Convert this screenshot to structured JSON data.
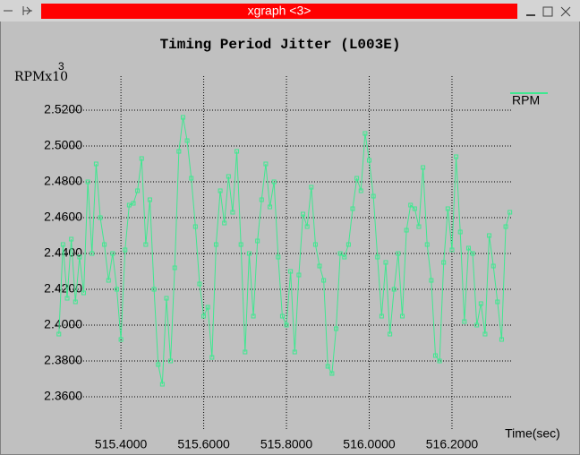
{
  "window": {
    "title": "xgraph <3>"
  },
  "chart_data": {
    "type": "line",
    "title": "Timing Period Jitter (L003E)",
    "y_label": "RPMx10",
    "y_label_exponent": "3",
    "x_label": "Time(sec)",
    "xlim": [
      515.244,
      516.345
    ],
    "ylim": [
      2.3415,
      2.539
    ],
    "grid": true,
    "legend": "top-right",
    "xticks": [
      {
        "value": 515.4,
        "label": "515.4000"
      },
      {
        "value": 515.6,
        "label": "515.6000"
      },
      {
        "value": 515.8,
        "label": "515.8000"
      },
      {
        "value": 516.0,
        "label": "516.0000"
      },
      {
        "value": 516.2,
        "label": "516.2000"
      }
    ],
    "yticks": [
      {
        "value": 2.36,
        "label": "2.3600"
      },
      {
        "value": 2.38,
        "label": "2.3800"
      },
      {
        "value": 2.4,
        "label": "2.4000"
      },
      {
        "value": 2.42,
        "label": "2.4200"
      },
      {
        "value": 2.44,
        "label": "2.4400"
      },
      {
        "value": 2.46,
        "label": "2.4600"
      },
      {
        "value": 2.48,
        "label": "2.4800"
      },
      {
        "value": 2.5,
        "label": "2.5000"
      },
      {
        "value": 2.52,
        "label": "2.5200"
      }
    ],
    "x": [
      515.25,
      515.26,
      515.27,
      515.28,
      515.29,
      515.3,
      515.31,
      515.32,
      515.33,
      515.34,
      515.35,
      515.36,
      515.37,
      515.38,
      515.39,
      515.4,
      515.41,
      515.42,
      515.43,
      515.44,
      515.45,
      515.46,
      515.47,
      515.48,
      515.49,
      515.5,
      515.51,
      515.52,
      515.53,
      515.54,
      515.55,
      515.56,
      515.57,
      515.58,
      515.59,
      515.6,
      515.61,
      515.62,
      515.63,
      515.64,
      515.65,
      515.66,
      515.67,
      515.68,
      515.69,
      515.7,
      515.71,
      515.72,
      515.73,
      515.74,
      515.75,
      515.76,
      515.77,
      515.78,
      515.79,
      515.8,
      515.81,
      515.82,
      515.83,
      515.84,
      515.85,
      515.86,
      515.87,
      515.88,
      515.89,
      515.9,
      515.91,
      515.92,
      515.93,
      515.94,
      515.95,
      515.96,
      515.97,
      515.98,
      515.99,
      516.0,
      516.01,
      516.02,
      516.03,
      516.04,
      516.05,
      516.06,
      516.07,
      516.08,
      516.09,
      516.1,
      516.11,
      516.12,
      516.13,
      516.14,
      516.15,
      516.16,
      516.17,
      516.18,
      516.19,
      516.2,
      516.21,
      516.22,
      516.23,
      516.24,
      516.25,
      516.26,
      516.27,
      516.28,
      516.29,
      516.3,
      516.31,
      516.32,
      516.33,
      516.34
    ],
    "series": [
      {
        "name": "RPM",
        "color": "#3ee890",
        "values": [
          2.395,
          2.445,
          2.415,
          2.448,
          2.413,
          2.438,
          2.418,
          2.48,
          2.44,
          2.49,
          2.46,
          2.445,
          2.425,
          2.44,
          2.42,
          2.392,
          2.442,
          2.467,
          2.468,
          2.475,
          2.493,
          2.445,
          2.47,
          2.42,
          2.378,
          2.367,
          2.415,
          2.38,
          2.432,
          2.497,
          2.516,
          2.503,
          2.482,
          2.455,
          2.423,
          2.405,
          2.41,
          2.382,
          2.445,
          2.475,
          2.457,
          2.483,
          2.463,
          2.497,
          2.445,
          2.385,
          2.44,
          2.405,
          2.447,
          2.47,
          2.49,
          2.466,
          2.48,
          2.438,
          2.405,
          2.4,
          2.43,
          2.385,
          2.428,
          2.462,
          2.455,
          2.477,
          2.445,
          2.433,
          2.425,
          2.377,
          2.373,
          2.398,
          2.44,
          2.438,
          2.445,
          2.465,
          2.482,
          2.475,
          2.507,
          2.492,
          2.472,
          2.438,
          2.405,
          2.435,
          2.395,
          2.42,
          2.44,
          2.405,
          2.453,
          2.467,
          2.465,
          2.455,
          2.488,
          2.445,
          2.425,
          2.383,
          2.38,
          2.435,
          2.465,
          2.442,
          2.494,
          2.452,
          2.402,
          2.443,
          2.44,
          2.4,
          2.412,
          2.395,
          2.45,
          2.433,
          2.413,
          2.392,
          2.455,
          2.463
        ]
      }
    ]
  }
}
